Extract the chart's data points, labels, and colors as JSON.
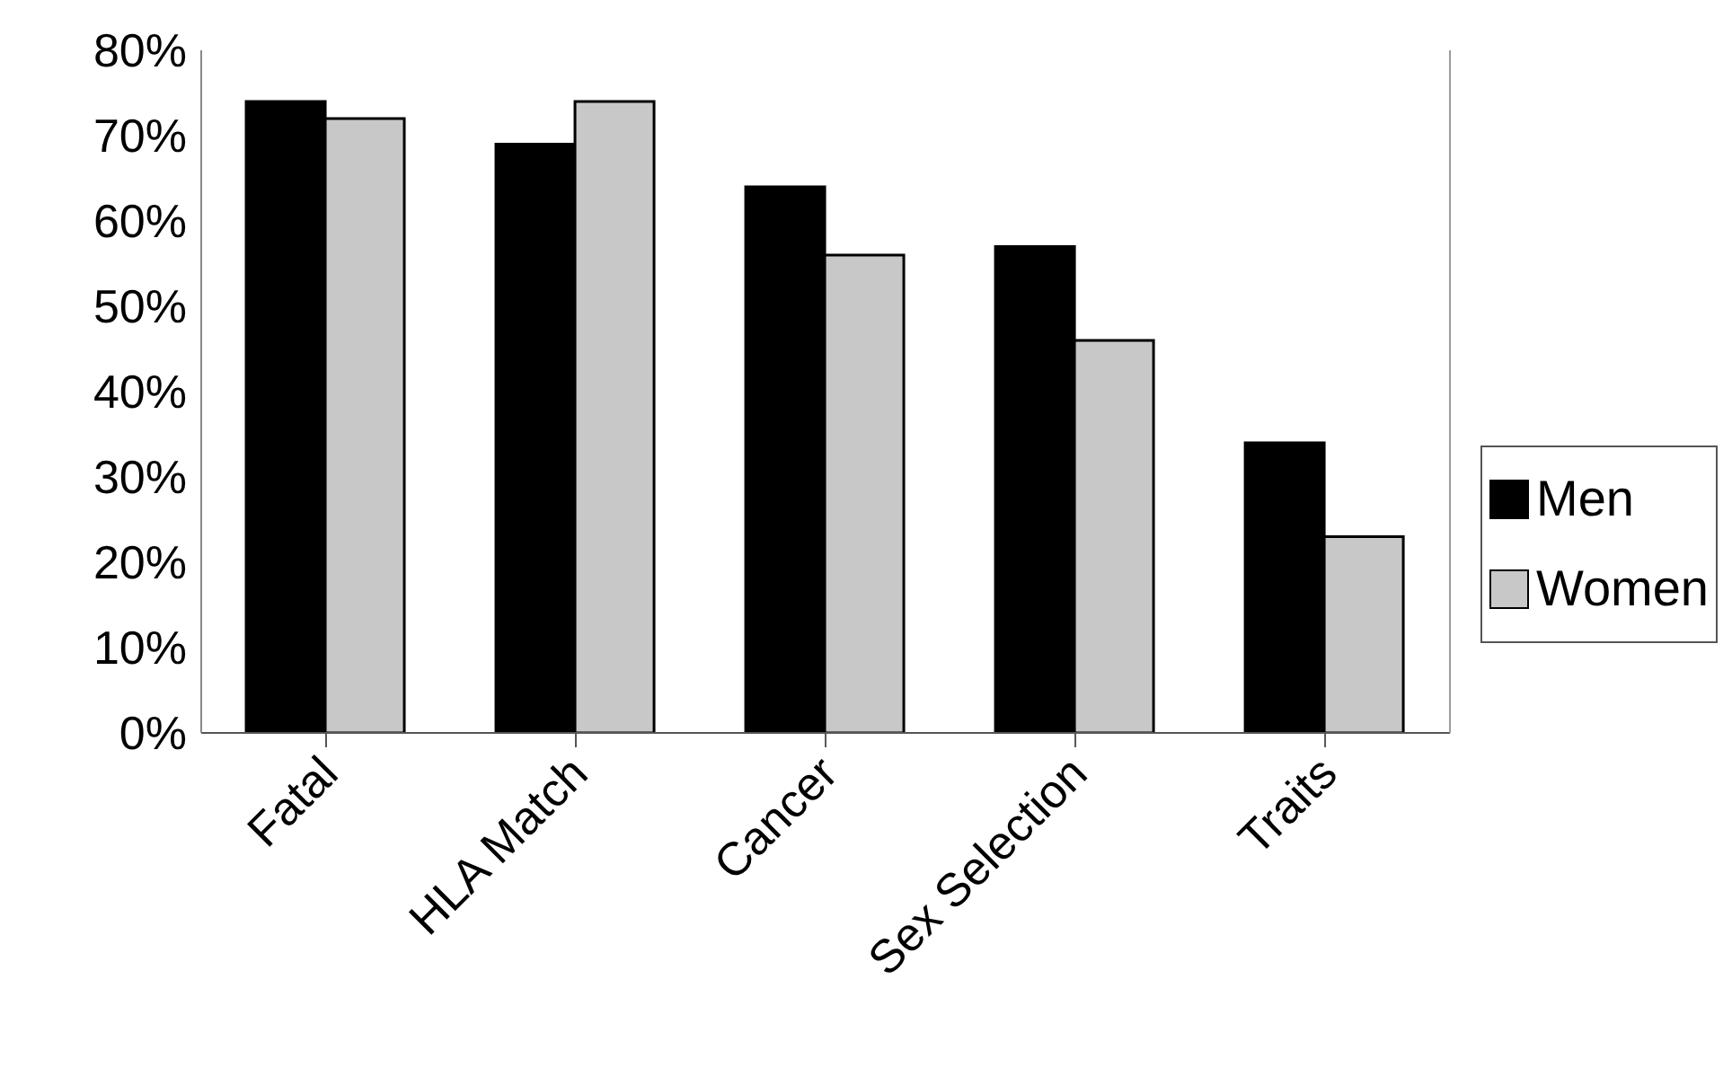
{
  "chart_data": {
    "type": "bar",
    "categories": [
      "Fatal",
      "HLA Match",
      "Cancer",
      "Sex Selection",
      "Traits"
    ],
    "series": [
      {
        "name": "Men",
        "color": "#000000",
        "values": [
          74,
          69,
          64,
          57,
          34
        ]
      },
      {
        "name": "Women",
        "color": "#c8c8c8",
        "values": [
          72,
          74,
          56,
          46,
          23
        ]
      }
    ],
    "ylim": [
      0,
      80
    ],
    "yticks": [
      {
        "value": 0,
        "label": "0%"
      },
      {
        "value": 10,
        "label": "10%"
      },
      {
        "value": 20,
        "label": "20%"
      },
      {
        "value": 30,
        "label": "30%"
      },
      {
        "value": 40,
        "label": "40%"
      },
      {
        "value": 50,
        "label": "50%"
      },
      {
        "value": 60,
        "label": "60%"
      },
      {
        "value": 70,
        "label": "70%"
      },
      {
        "value": 80,
        "label": "80%"
      }
    ],
    "legend": "right"
  }
}
